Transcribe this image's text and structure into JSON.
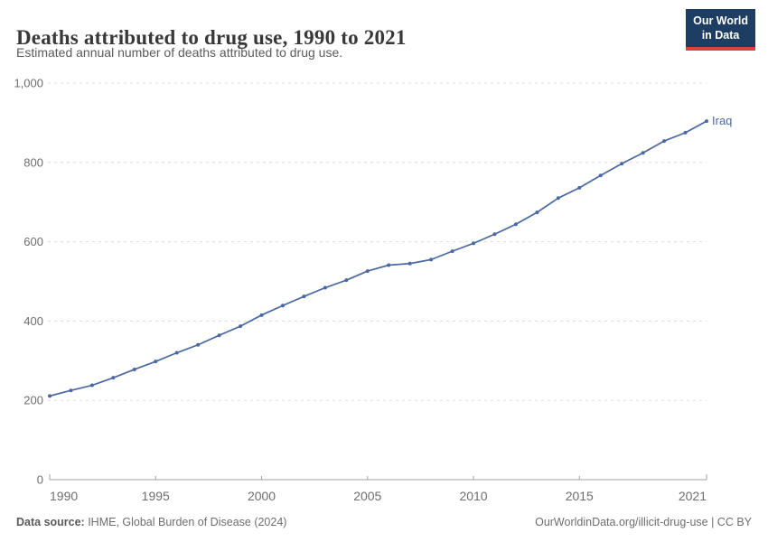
{
  "header": {
    "title": "Deaths attributed to drug use, 1990 to 2021",
    "subtitle": "Estimated annual number of deaths attributed to drug use.",
    "logo_line1": "Our World",
    "logo_line2": "in Data",
    "logo_bg_color": "#1d3d63",
    "logo_stripe_color": "#dc3e42"
  },
  "chart_data": {
    "type": "line",
    "title": "Deaths attributed to drug use, 1990 to 2021",
    "xlabel": "",
    "ylabel": "",
    "xlim": [
      1990,
      2021
    ],
    "ylim": [
      0,
      1000
    ],
    "grid": "horizontal-dashed",
    "legend_position": "end-of-line",
    "x_ticks": [
      1990,
      1995,
      2000,
      2005,
      2010,
      2015,
      2021
    ],
    "y_ticks": [
      0,
      200,
      400,
      600,
      800,
      1000
    ],
    "y_tick_labels": [
      "0",
      "200",
      "400",
      "600",
      "800",
      "1,000"
    ],
    "series": [
      {
        "name": "Iraq",
        "color": "#4a69a2",
        "x": [
          1990,
          1991,
          1992,
          1993,
          1994,
          1995,
          1996,
          1997,
          1998,
          1999,
          2000,
          2001,
          2002,
          2003,
          2004,
          2005,
          2006,
          2007,
          2008,
          2009,
          2010,
          2011,
          2012,
          2013,
          2014,
          2015,
          2016,
          2017,
          2018,
          2019,
          2020,
          2021
        ],
        "values": [
          211,
          225,
          238,
          257,
          278,
          298,
          320,
          340,
          364,
          387,
          415,
          439,
          462,
          484,
          503,
          526,
          541,
          545,
          555,
          576,
          596,
          619,
          644,
          674,
          710,
          736,
          767,
          797,
          824,
          854,
          875,
          904
        ]
      }
    ],
    "axis_color": "#a1a1a1",
    "grid_color": "#dcdcdc",
    "tick_text_color": "#6e6e6e"
  },
  "footer": {
    "datasource_label": "Data source:",
    "datasource_value": " IHME, Global Burden of Disease (2024)",
    "credit": "OurWorldinData.org/illicit-drug-use | CC BY"
  }
}
